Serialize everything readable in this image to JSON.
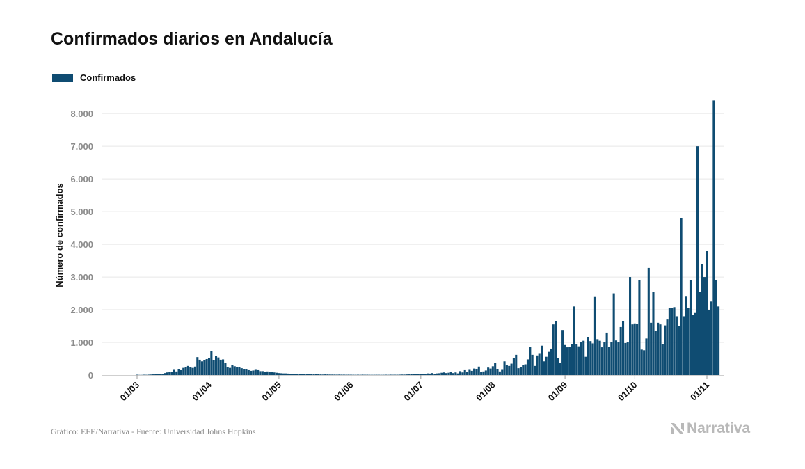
{
  "title": "Confirmados diarios en Andalucía",
  "footer": {
    "source": "Gráfico: EFE/Narrativa - Fuente: Universidad Johns Hopkins",
    "brand": "Narrativa"
  },
  "colors": {
    "bar": "#0f4c72",
    "grid": "#e6e6e6",
    "brand": "#b9b9b9"
  },
  "chart_data": {
    "type": "bar",
    "title": "Confirmados diarios en Andalucía",
    "ylabel": "Número de confirmados",
    "xlabel": "",
    "legend": {
      "position": "top-left",
      "entries": [
        "Confirmados"
      ]
    },
    "grid": true,
    "ylim": [
      0,
      8600
    ],
    "y_ticks": [
      0,
      1000,
      2000,
      3000,
      4000,
      5000,
      6000,
      7000,
      8000
    ],
    "y_tick_labels": [
      "0",
      "1.000",
      "2.000",
      "3.000",
      "4.000",
      "5.000",
      "6.000",
      "7.000",
      "8.000"
    ],
    "x_start": "2020-02-25",
    "x_ticks": [
      "2020-03-01",
      "2020-04-01",
      "2020-05-01",
      "2020-06-01",
      "2020-07-01",
      "2020-08-01",
      "2020-09-01",
      "2020-10-01",
      "2020-11-01"
    ],
    "x_tick_labels": [
      "01/03",
      "01/04",
      "01/05",
      "01/06",
      "01/07",
      "01/08",
      "01/09",
      "01/10",
      "01/11"
    ],
    "series": [
      {
        "name": "Confirmados",
        "values": [
          0,
          0,
          0,
          0,
          0,
          10,
          5,
          5,
          10,
          8,
          12,
          15,
          20,
          25,
          30,
          25,
          40,
          60,
          80,
          90,
          100,
          160,
          110,
          180,
          150,
          220,
          250,
          280,
          240,
          220,
          260,
          550,
          470,
          420,
          460,
          490,
          520,
          730,
          460,
          580,
          540,
          470,
          480,
          380,
          250,
          220,
          310,
          270,
          250,
          250,
          210,
          190,
          180,
          150,
          130,
          140,
          160,
          150,
          120,
          120,
          100,
          110,
          100,
          90,
          80,
          70,
          60,
          55,
          50,
          50,
          45,
          40,
          35,
          30,
          40,
          35,
          30,
          28,
          25,
          22,
          25,
          20,
          28,
          22,
          18,
          15,
          20,
          18,
          15,
          15,
          14,
          12,
          15,
          12,
          12,
          10,
          12,
          10,
          9,
          8,
          10,
          8,
          12,
          9,
          10,
          8,
          7,
          8,
          9,
          8,
          7,
          8,
          10,
          8,
          12,
          9,
          10,
          10,
          12,
          15,
          14,
          18,
          20,
          25,
          22,
          30,
          35,
          28,
          40,
          35,
          50,
          45,
          60,
          40,
          50,
          55,
          70,
          80,
          60,
          70,
          90,
          60,
          80,
          50,
          120,
          80,
          150,
          100,
          160,
          130,
          200,
          180,
          260,
          90,
          110,
          140,
          230,
          200,
          270,
          380,
          180,
          110,
          160,
          420,
          300,
          280,
          350,
          520,
          620,
          210,
          250,
          300,
          330,
          480,
          870,
          620,
          280,
          600,
          650,
          900,
          420,
          560,
          710,
          810,
          1550,
          1650,
          520,
          380,
          1380,
          920,
          850,
          870,
          950,
          2100,
          940,
          880,
          1000,
          1050,
          560,
          1150,
          1040,
          970,
          2390,
          1100,
          1050,
          850,
          1000,
          1300,
          870,
          1020,
          2500,
          1060,
          1000,
          1470,
          1650,
          980,
          1000,
          3000,
          1550,
          1580,
          1560,
          2900,
          780,
          760,
          1120,
          3280,
          1600,
          2550,
          1350,
          1600,
          1550,
          950,
          1520,
          1700,
          2060,
          2050,
          2080,
          1800,
          1500,
          4800,
          1800,
          2400,
          2050,
          2900,
          1850,
          1900,
          7000,
          2550,
          3400,
          3000,
          3800,
          1980,
          2250,
          8400,
          2900,
          2100
        ]
      }
    ]
  }
}
